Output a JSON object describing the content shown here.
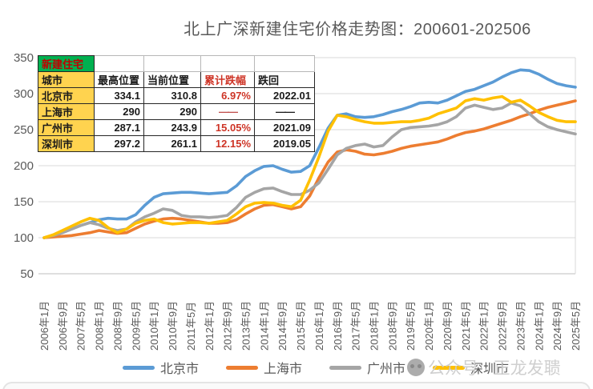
{
  "title": "北上广深新建住宅价格走势图：200601-202506",
  "watermark": {
    "text": "公众号 · 正龙发聩"
  },
  "table": {
    "corner_label": "新建住宅",
    "columns": [
      "城市",
      "最高位置",
      "当前位置",
      "累计跌幅",
      "跌回"
    ],
    "rows": [
      {
        "city": "北京市",
        "high": "334.1",
        "current": "310.8",
        "decline": "6.97%",
        "fell_back": "2022.01"
      },
      {
        "city": "上海市",
        "high": "290",
        "current": "290",
        "decline": "——",
        "fell_back": "——"
      },
      {
        "city": "广州市",
        "high": "287.1",
        "current": "243.9",
        "decline": "15.05%",
        "fell_back": "2021.09"
      },
      {
        "city": "深圳市",
        "high": "297.2",
        "current": "261.1",
        "decline": "12.15%",
        "fell_back": "2019.05"
      }
    ]
  },
  "legend": [
    {
      "label": "北京市",
      "color": "#5B9BD5"
    },
    {
      "label": "上海市",
      "color": "#ED7D31"
    },
    {
      "label": "广州市",
      "color": "#A5A5A5"
    },
    {
      "label": "深圳市",
      "color": "#FFC000"
    }
  ],
  "chart_data": {
    "type": "line",
    "title": "北上广深新建住宅价格走势图：200601-202506",
    "x_start": "2006-01",
    "x_end": "2025-06",
    "x_months_step": 4,
    "x_tick_labels": [
      "2006年1月",
      "2006年9月",
      "2007年5月",
      "2008年1月",
      "2008年9月",
      "2009年5月",
      "2010年1月",
      "2010年9月",
      "2011年5月",
      "2012年1月",
      "2012年9月",
      "2013年5月",
      "2014年1月",
      "2014年9月",
      "2015年5月",
      "2016年1月",
      "2016年9月",
      "2017年5月",
      "2018年1月",
      "2018年9月",
      "2019年5月",
      "2020年1月",
      "2020年9月",
      "2021年5月",
      "2022年1月",
      "2022年9月",
      "2023年5月",
      "2024年1月",
      "2024年9月",
      "2025年5月"
    ],
    "y_ticks": [
      50,
      100,
      150,
      200,
      250,
      300,
      350
    ],
    "ylim": [
      50,
      350
    ],
    "grid": true,
    "legend_position": "bottom",
    "series": [
      {
        "name": "北京市",
        "color": "#5B9BD5",
        "values": [
          100,
          103,
          107,
          112,
          117,
          121,
          125,
          127,
          126,
          126,
          132,
          145,
          156,
          161,
          162,
          163,
          163,
          162,
          161,
          162,
          163,
          172,
          185,
          193,
          199,
          200,
          195,
          191,
          192,
          200,
          225,
          252,
          270,
          272,
          268,
          267,
          268,
          271,
          275,
          278,
          282,
          287,
          288,
          287,
          291,
          297,
          303,
          306,
          311,
          316,
          323,
          329,
          333,
          332,
          327,
          320,
          314,
          311,
          309
        ]
      },
      {
        "name": "上海市",
        "color": "#ED7D31",
        "values": [
          100,
          101,
          102,
          103,
          105,
          107,
          110,
          108,
          106,
          107,
          113,
          119,
          123,
          126,
          127,
          126,
          124,
          122,
          120,
          120,
          121,
          125,
          133,
          140,
          145,
          146,
          143,
          140,
          143,
          158,
          183,
          205,
          219,
          222,
          220,
          216,
          215,
          217,
          220,
          224,
          227,
          229,
          231,
          233,
          237,
          242,
          246,
          248,
          251,
          255,
          259,
          263,
          268,
          272,
          277,
          281,
          284,
          287,
          290
        ]
      },
      {
        "name": "广州市",
        "color": "#A5A5A5",
        "values": [
          100,
          103,
          107,
          112,
          117,
          121,
          118,
          113,
          110,
          112,
          122,
          129,
          134,
          140,
          138,
          131,
          129,
          129,
          128,
          129,
          131,
          142,
          156,
          163,
          168,
          169,
          164,
          160,
          160,
          166,
          176,
          195,
          215,
          224,
          228,
          230,
          226,
          228,
          240,
          250,
          253,
          254,
          255,
          257,
          261,
          268,
          280,
          284,
          281,
          278,
          280,
          287,
          283,
          272,
          261,
          254,
          250,
          247,
          244
        ]
      },
      {
        "name": "深圳市",
        "color": "#FFC000",
        "values": [
          100,
          104,
          110,
          116,
          122,
          127,
          124,
          114,
          107,
          112,
          120,
          124,
          126,
          121,
          119,
          120,
          121,
          121,
          120,
          122,
          124,
          133,
          143,
          148,
          149,
          148,
          145,
          143,
          152,
          180,
          212,
          248,
          270,
          268,
          264,
          261,
          259,
          259,
          260,
          261,
          261,
          263,
          266,
          272,
          276,
          280,
          290,
          293,
          291,
          294,
          296,
          288,
          291,
          283,
          274,
          268,
          263,
          261,
          261
        ]
      }
    ]
  }
}
